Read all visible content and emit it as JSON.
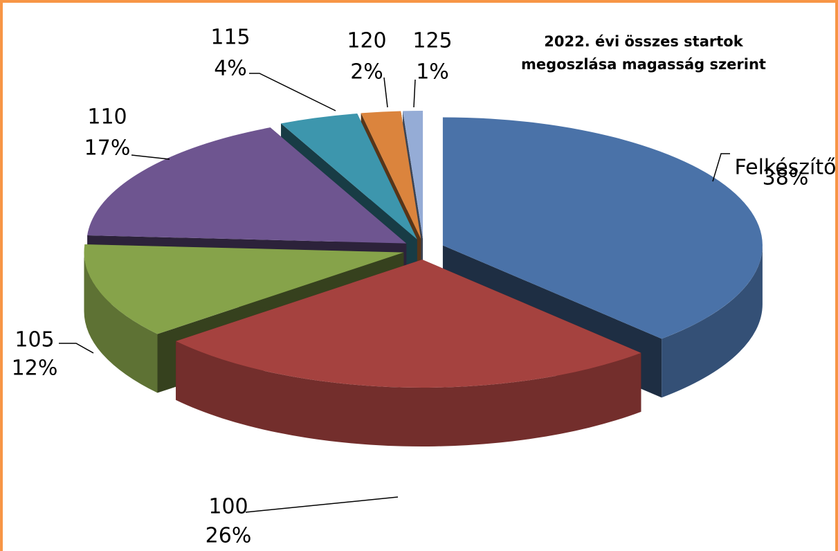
{
  "chart_data": {
    "type": "pie",
    "title": "2022. évi összes startok megoszlása magasság szerint",
    "categories": [
      "Felkészítő",
      "100",
      "105",
      "110",
      "115",
      "120",
      "125"
    ],
    "values": [
      38,
      26,
      12,
      17,
      4,
      2,
      1
    ],
    "value_labels": [
      "38%",
      "26%",
      "12%",
      "17%",
      "4%",
      "2%",
      "1%"
    ],
    "colors": [
      "#4a72a8",
      "#a5423f",
      "#86a34a",
      "#6e5590",
      "#3d96ad",
      "#db843d",
      "#95acd6"
    ]
  }
}
